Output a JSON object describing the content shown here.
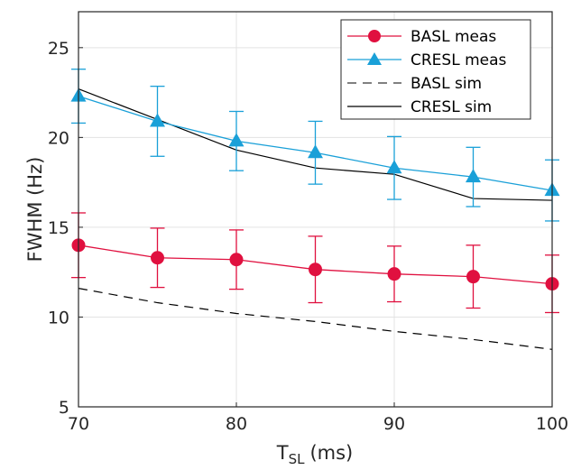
{
  "chart_data": {
    "type": "line",
    "x": [
      70,
      75,
      80,
      85,
      90,
      95,
      100
    ],
    "xlim": [
      70,
      100
    ],
    "ylim": [
      5,
      27
    ],
    "xticks": [
      "70",
      "80",
      "90",
      "100"
    ],
    "yticks": [
      "5",
      "10",
      "15",
      "20",
      "25"
    ],
    "xlabel_main": "T",
    "xlabel_sub": "SL",
    "xlabel_unit": "(ms)",
    "ylabel": "FWHM (Hz)",
    "grid": true,
    "legend_position": "top-right",
    "series": [
      {
        "name": "BASL meas",
        "color": "#e0103f",
        "marker": "circle",
        "line_style": "solid",
        "values": [
          14.0,
          13.3,
          13.2,
          12.65,
          12.4,
          12.25,
          11.85
        ],
        "err": [
          1.8,
          1.65,
          1.65,
          1.85,
          1.55,
          1.75,
          1.6
        ]
      },
      {
        "name": "CRESL meas",
        "color": "#1aa0d8",
        "marker": "triangle",
        "line_style": "solid",
        "values": [
          22.3,
          20.9,
          19.8,
          19.15,
          18.3,
          17.8,
          17.05
        ],
        "err": [
          1.5,
          1.95,
          1.65,
          1.75,
          1.75,
          1.65,
          1.7
        ]
      },
      {
        "name": "BASL sim",
        "color": "#000000",
        "marker": "none",
        "line_style": "dashed",
        "values": [
          11.6,
          10.8,
          10.2,
          9.75,
          9.2,
          8.75,
          8.2
        ]
      },
      {
        "name": "CRESL sim",
        "color": "#000000",
        "marker": "none",
        "line_style": "solid",
        "values": [
          22.7,
          21.0,
          19.3,
          18.3,
          17.95,
          16.6,
          16.5
        ]
      }
    ]
  }
}
